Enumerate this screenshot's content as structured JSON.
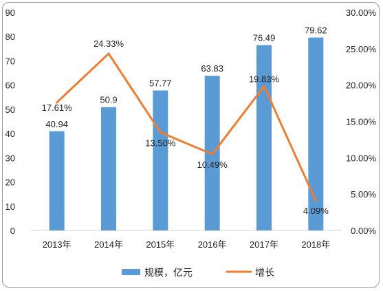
{
  "chart_data": {
    "type": "bar+line",
    "categories": [
      "2013年",
      "2014年",
      "2015年",
      "2016年",
      "2017年",
      "2018年"
    ],
    "series": [
      {
        "name": "规模，亿元",
        "type": "bar",
        "axis": "left",
        "values": [
          40.94,
          50.9,
          57.77,
          63.83,
          76.49,
          79.62
        ],
        "labels": [
          "40.94",
          "50.9",
          "57.77",
          "63.83",
          "76.49",
          "79.62"
        ],
        "color": "#5B9BD5"
      },
      {
        "name": "增长",
        "type": "line",
        "axis": "right",
        "values": [
          17.61,
          24.33,
          13.5,
          10.49,
          19.83,
          4.09
        ],
        "labels": [
          "17.61%",
          "24.33%",
          "13.50%",
          "10.49%",
          "19.83%",
          "4.09%"
        ],
        "color": "#ED7D31"
      }
    ],
    "left_axis": {
      "ylim": [
        0,
        90
      ],
      "ticks": [
        0,
        10,
        20,
        30,
        40,
        50,
        60,
        70,
        80,
        90
      ],
      "tick_labels": [
        "0",
        "10",
        "20",
        "30",
        "40",
        "50",
        "60",
        "70",
        "80",
        "90"
      ]
    },
    "right_axis": {
      "ylim": [
        0,
        30
      ],
      "ticks": [
        0,
        5,
        10,
        15,
        20,
        25,
        30
      ],
      "tick_labels": [
        "0.00%",
        "5.00%",
        "10.00%",
        "15.00%",
        "20.00%",
        "25.00%",
        "30.00%"
      ]
    },
    "grid": false,
    "legend": {
      "position": "bottom",
      "entries": [
        "规模，亿元",
        "增长"
      ]
    }
  }
}
